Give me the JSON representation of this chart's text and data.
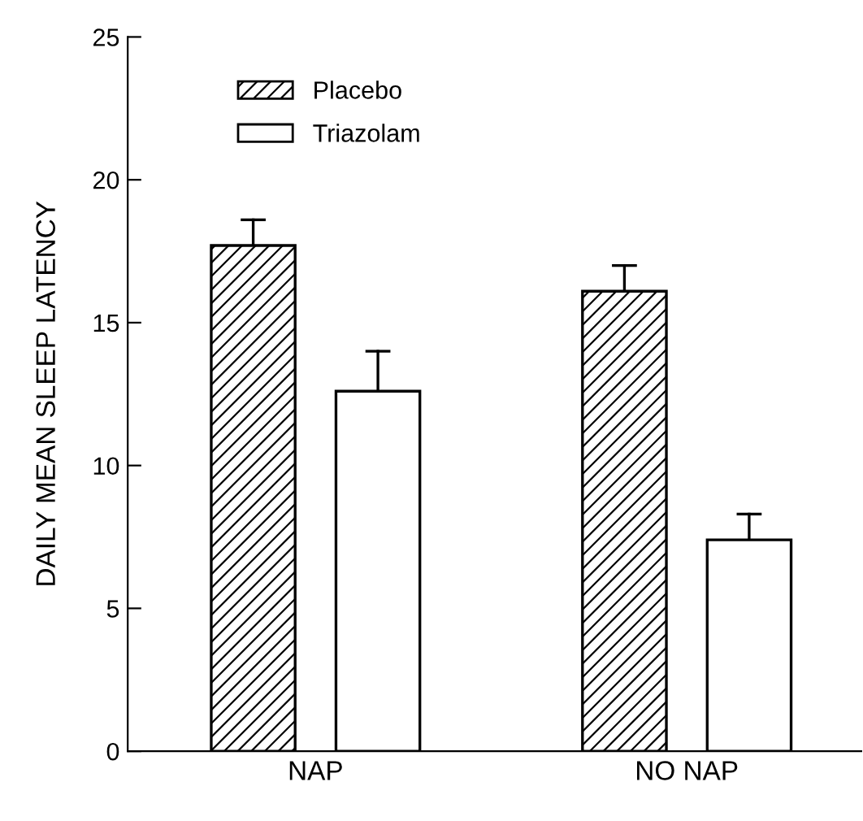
{
  "chart_data": {
    "type": "bar",
    "ylabel": "DAILY MEAN SLEEP LATENCY",
    "categories": [
      "NAP",
      "NO NAP"
    ],
    "series": [
      {
        "name": "Placebo",
        "color": "#000000",
        "values": [
          17.7,
          16.1
        ],
        "errors": [
          [
            17.7,
            18.6
          ],
          [
            16.1,
            17.0
          ]
        ]
      },
      {
        "name": "Triazolam",
        "color": "#ffffff",
        "values": [
          12.6,
          7.4
        ],
        "errors": [
          [
            12.6,
            14.0
          ],
          [
            7.4,
            8.3
          ]
        ]
      }
    ],
    "ylim": [
      0,
      25
    ],
    "yticks": [
      0,
      5,
      10,
      15,
      20,
      25
    ],
    "grid": false,
    "legend": "top left"
  }
}
